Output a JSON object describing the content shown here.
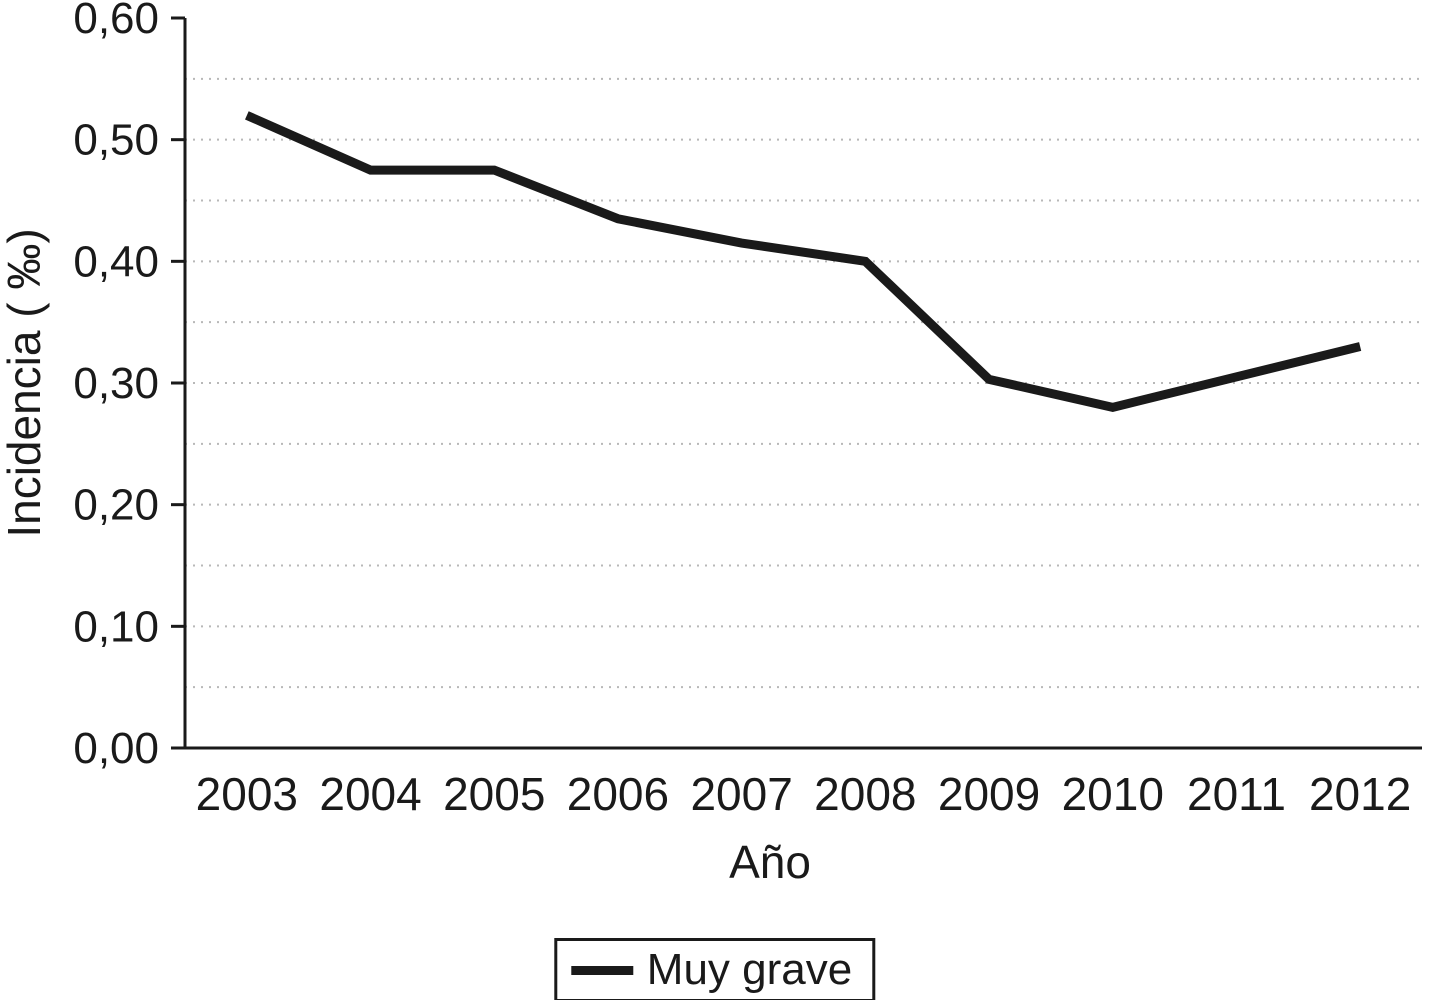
{
  "chart_data": {
    "type": "line",
    "categories": [
      "2003",
      "2004",
      "2005",
      "2006",
      "2007",
      "2008",
      "2009",
      "2010",
      "2011",
      "2012"
    ],
    "series": [
      {
        "name": "Muy grave",
        "values": [
          0.52,
          0.475,
          0.475,
          0.435,
          0.415,
          0.4,
          0.303,
          0.28,
          0.305,
          0.33
        ]
      }
    ],
    "xlabel": "Año",
    "ylabel": "Incidencia ( ‰)",
    "ylim": [
      0,
      0.6
    ],
    "y_major_ticks": [
      {
        "value": 0.0,
        "label": "0,00"
      },
      {
        "value": 0.1,
        "label": "0,10"
      },
      {
        "value": 0.2,
        "label": "0,20"
      },
      {
        "value": 0.3,
        "label": "0,30"
      },
      {
        "value": 0.4,
        "label": "0,40"
      },
      {
        "value": 0.5,
        "label": "0,50"
      },
      {
        "value": 0.6,
        "label": "0,60"
      }
    ],
    "gridline_step": 0.05,
    "grid": "horizontal-dotted",
    "legend_position": "bottom-center",
    "line_color": "#1a1a1a",
    "axis_color": "#1a1a1a",
    "gridline_color": "#b8b8b8"
  }
}
